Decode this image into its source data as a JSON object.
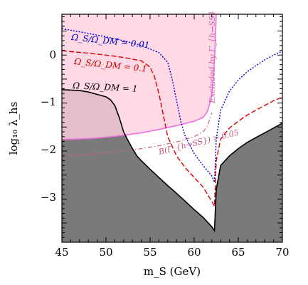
{
  "chart_data": {
    "type": "line",
    "xlabel": "m_S (GeV)",
    "ylabel": "log₁₀ λ_hs",
    "xlim": [
      45,
      70
    ],
    "ylim": [
      -3.9,
      0.85
    ],
    "x_ticks": [
      "45",
      "50",
      "55",
      "60",
      "65",
      "70"
    ],
    "y_ticks": [
      "0",
      "−1",
      "−2",
      "−3"
    ],
    "colors": {
      "excluded_fill": "#ffd0dc",
      "excluded_edge": "#f070e0",
      "dm_shade": "#7a7a7a",
      "line_001": "#0000dd",
      "line_01": "#dd0000",
      "line_1": "#000000"
    },
    "annotations": {
      "excluded": "Excluded by Γ_{h→SS}",
      "branching": "B(Γ_{h→SS}) > 0.05",
      "label_001": "Ω_S/Ω_DM = 0.01",
      "label_01": "Ω_S/Ω_DM = 0.1",
      "label_1": "Ω_S/Ω_DM = 1"
    },
    "series": [
      {
        "key": "omega_1",
        "x": [
          45,
          46,
          47,
          48,
          49,
          50,
          50.5,
          51,
          51.5,
          52,
          52.5,
          53,
          53.5,
          54,
          55,
          56,
          57,
          58,
          59,
          60,
          61,
          62,
          62.3,
          62.5,
          63,
          64,
          65,
          66,
          67,
          68,
          69,
          70
        ],
        "y": [
          -0.72,
          -0.73,
          -0.74,
          -0.77,
          -0.82,
          -0.87,
          -0.93,
          -1.05,
          -1.3,
          -1.6,
          -1.78,
          -1.95,
          -2.1,
          -2.2,
          -2.38,
          -2.55,
          -2.72,
          -2.88,
          -3.05,
          -3.22,
          -3.38,
          -3.58,
          -3.66,
          -2.8,
          -2.3,
          -2.1,
          -1.95,
          -1.82,
          -1.72,
          -1.62,
          -1.52,
          -1.42
        ]
      },
      {
        "key": "omega_01",
        "x": [
          45,
          48,
          50,
          52,
          54,
          55,
          55.5,
          56,
          56.5,
          57,
          58,
          59,
          60,
          61,
          62,
          62.3,
          62.5,
          63,
          64,
          65,
          66,
          67,
          68,
          69,
          70
        ],
        "y": [
          0.09,
          0.04,
          0.0,
          -0.05,
          -0.12,
          -0.25,
          -0.45,
          -0.8,
          -1.25,
          -1.7,
          -2.1,
          -2.35,
          -2.55,
          -2.75,
          -3.05,
          -3.15,
          -2.2,
          -1.75,
          -1.52,
          -1.38,
          -1.25,
          -1.15,
          -1.05,
          -0.95,
          -0.88
        ]
      },
      {
        "key": "omega_001",
        "x": [
          45,
          48,
          50,
          52,
          54,
          56,
          57,
          57.5,
          58,
          58.5,
          59,
          60,
          61,
          62,
          62.3,
          62.5,
          63,
          64,
          65,
          66,
          67,
          68,
          69,
          70
        ],
        "y": [
          0.55,
          0.45,
          0.38,
          0.3,
          0.2,
          0.05,
          -0.15,
          -0.5,
          -0.95,
          -1.4,
          -1.7,
          -2.05,
          -2.3,
          -2.52,
          -2.65,
          -1.75,
          -1.15,
          -0.75,
          -0.52,
          -0.35,
          -0.22,
          -0.1,
          0.0,
          0.08
        ]
      },
      {
        "key": "excluded_boundary",
        "x": [
          45,
          48,
          50,
          52,
          54,
          56,
          58,
          60,
          61,
          61.5,
          62,
          62.2,
          62.4,
          62.5
        ],
        "y": [
          -1.76,
          -1.74,
          -1.71,
          -1.67,
          -1.62,
          -1.55,
          -1.47,
          -1.38,
          -1.3,
          -1.18,
          -0.85,
          -0.4,
          0.3,
          0.85
        ]
      },
      {
        "key": "branching_boundary",
        "x": [
          45,
          48,
          50,
          52,
          54,
          56,
          58,
          60,
          61,
          61.5,
          62
        ],
        "y": [
          -2.1,
          -2.07,
          -2.04,
          -2.0,
          -1.95,
          -1.89,
          -1.81,
          -1.7,
          -1.6,
          -1.48,
          -1.2
        ]
      }
    ]
  }
}
